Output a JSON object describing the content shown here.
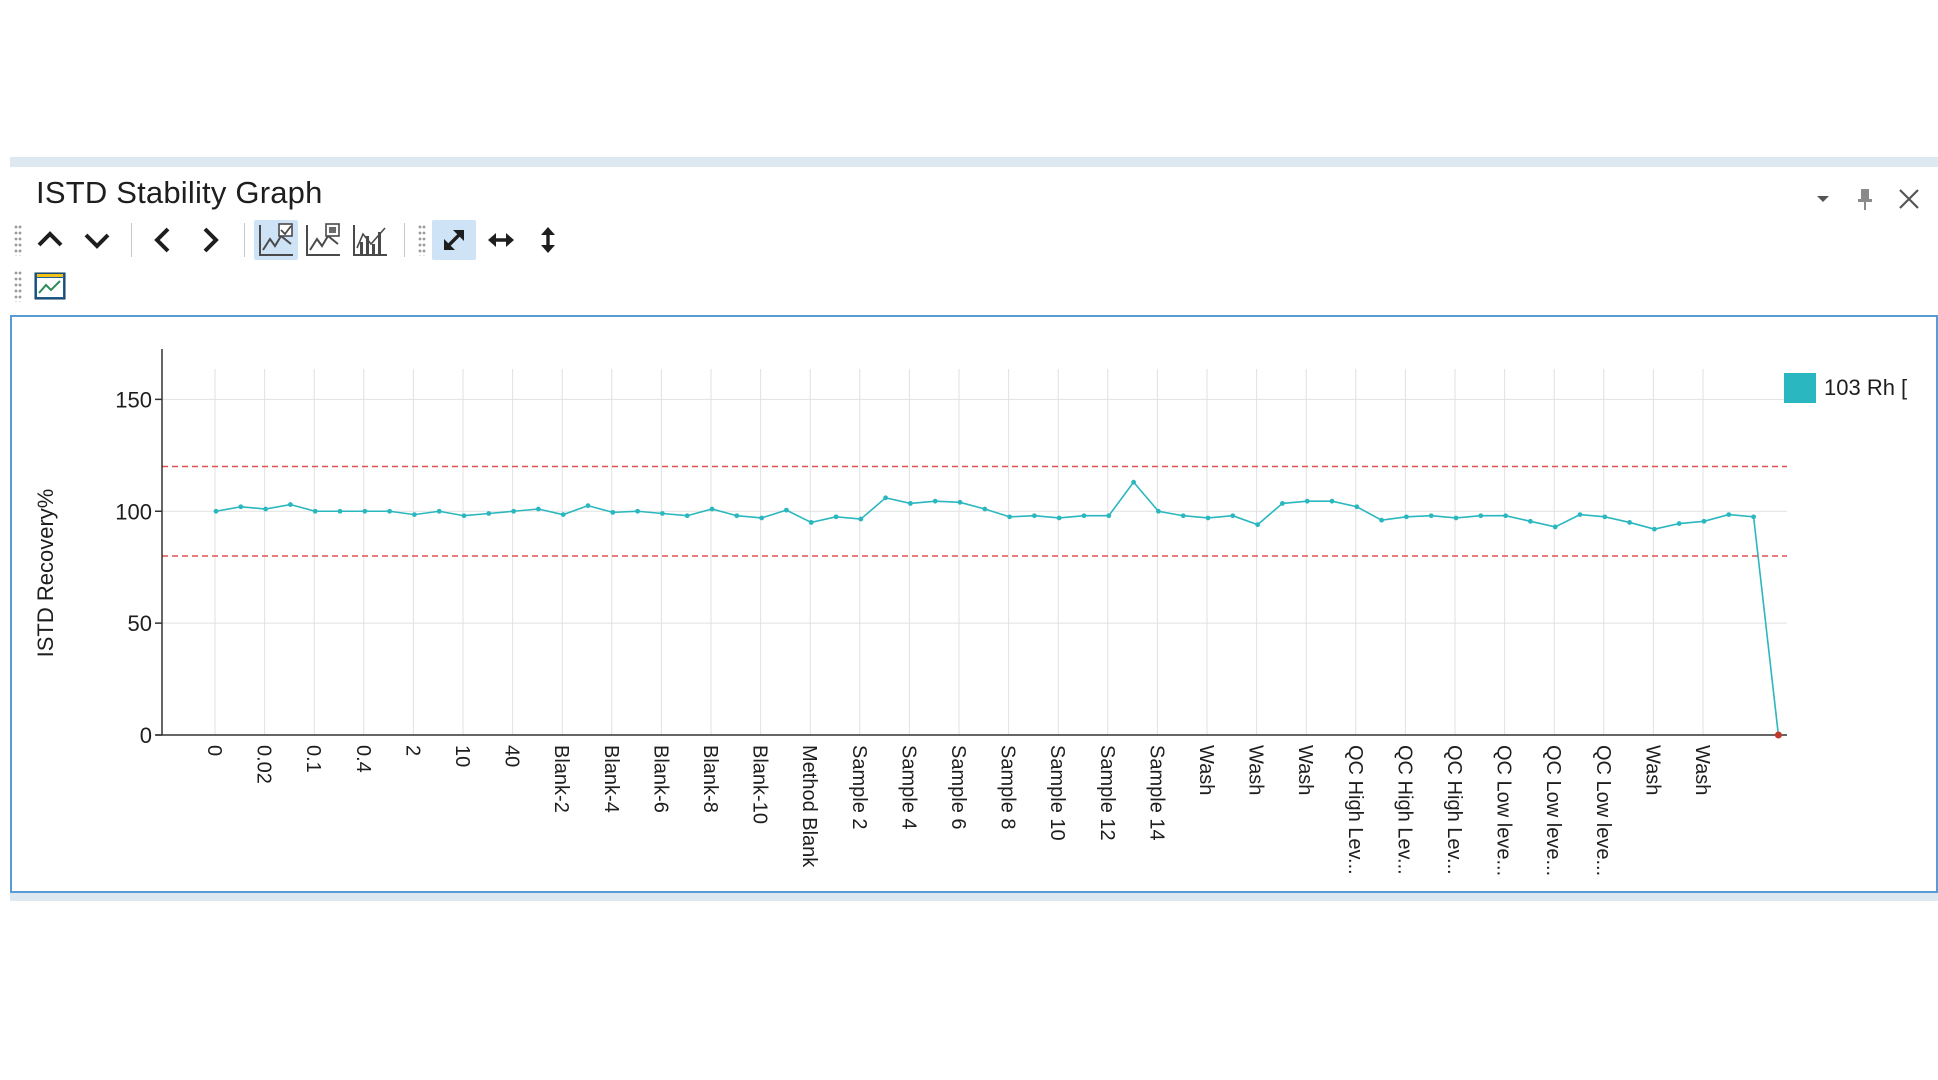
{
  "window": {
    "title": "ISTD Stability Graph",
    "controls": [
      {
        "name": "options-dropdown-icon",
        "glyph": "▾"
      },
      {
        "name": "pin-icon",
        "glyph": "pin"
      },
      {
        "name": "close-icon",
        "glyph": "✕"
      }
    ]
  },
  "toolbar": {
    "row1": [
      {
        "name": "scroll-up-button",
        "icon": "chevron-up-icon"
      },
      {
        "name": "scroll-down-button",
        "icon": "chevron-down-icon"
      },
      {
        "name": "previous-button",
        "icon": "chevron-left-icon"
      },
      {
        "name": "next-button",
        "icon": "chevron-right-icon"
      },
      {
        "name": "line-chart-check-button",
        "icon": "line-chart-check-icon",
        "active": true
      },
      {
        "name": "line-chart-image-button",
        "icon": "line-chart-image-icon"
      },
      {
        "name": "bar-line-chart-button",
        "icon": "bar-line-chart-icon"
      },
      {
        "name": "autoscale-button",
        "icon": "diagonal-arrow-icon",
        "active": true
      },
      {
        "name": "horizontal-scale-button",
        "icon": "horizontal-arrow-icon"
      },
      {
        "name": "vertical-scale-button",
        "icon": "vertical-arrow-icon"
      }
    ],
    "row2": [
      {
        "name": "chart-settings-button",
        "icon": "chart-window-icon"
      }
    ]
  },
  "colors": {
    "series": "#2ab7bf",
    "limits": "#e05252",
    "frame": "#5b9bd5",
    "toolbar_active": "#cfe3f7"
  },
  "chart_data": {
    "type": "line",
    "ylabel": "ISTD Recovery%",
    "ylim": [
      0,
      160
    ],
    "yticks": [
      0,
      50,
      100,
      150
    ],
    "grid": true,
    "legend_position": "top-right",
    "limit_lines": [
      80,
      120
    ],
    "x_tick_labels": [
      "0",
      "0.02",
      "0.1",
      "0.4",
      "2",
      "10",
      "40",
      "Blank-2",
      "Blank-4",
      "Blank-6",
      "Blank-8",
      "Blank-10",
      "Method Blank",
      "Sample 2",
      "Sample 4",
      "Sample 6",
      "Sample 8",
      "Sample 10",
      "Sample 12",
      "Sample 14",
      "Wash",
      "Wash",
      "Wash",
      "QC High Lev...",
      "QC High Lev...",
      "QC High Lev...",
      "QC Low leve...",
      "QC Low leve...",
      "QC Low leve...",
      "Wash",
      "Wash"
    ],
    "series": [
      {
        "name": "103 Rh [",
        "values": [
          100,
          102,
          101,
          103,
          100,
          100,
          100,
          100,
          98.5,
          100,
          98,
          99,
          100,
          101,
          98.5,
          102.5,
          99.5,
          100,
          99,
          98,
          101,
          98,
          97,
          100.5,
          95,
          97.5,
          96.5,
          106,
          103.5,
          104.5,
          104,
          101,
          97.5,
          98,
          97,
          98,
          98,
          113,
          100,
          98,
          97,
          98,
          94,
          103.5,
          104.5,
          104.5,
          102,
          96,
          97.5,
          98,
          97,
          98,
          98,
          95.5,
          93,
          98.5,
          97.5,
          95,
          92,
          94.5,
          95.5,
          98.5,
          97.5,
          0
        ]
      }
    ]
  }
}
